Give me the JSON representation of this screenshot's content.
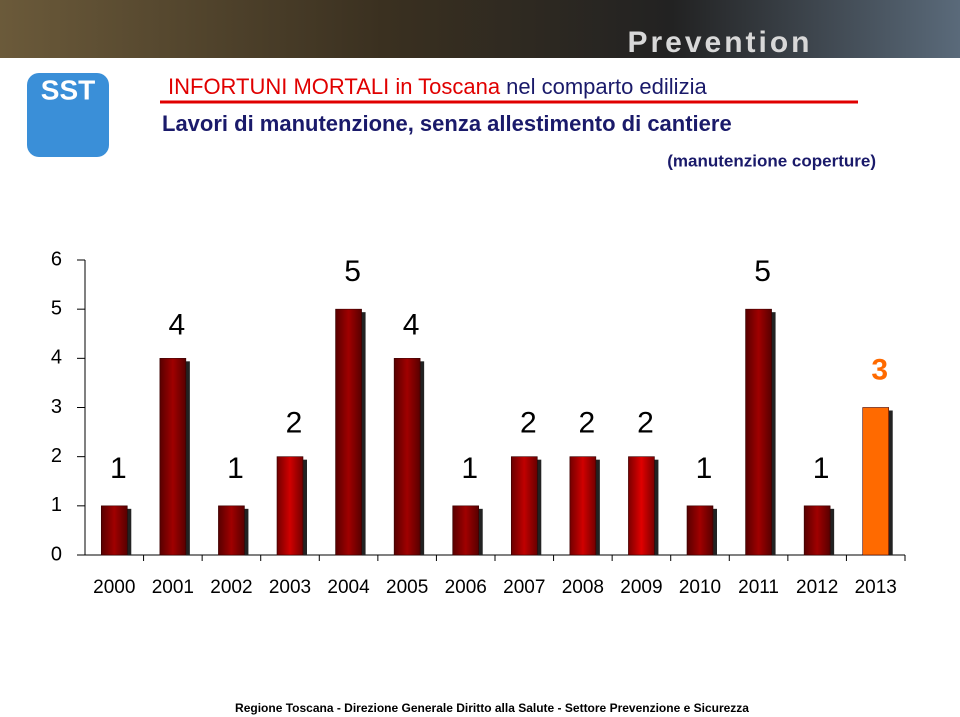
{
  "header": {
    "banner_text": "Prevention",
    "logo": "SST"
  },
  "title_red": "INFORTUNI MORTALI in Toscana",
  "title_blue": "nel comparto edilizia",
  "subtitle": "Lavori di manutenzione, senza allestimento di cantiere",
  "note": "(manutenzione coperture)",
  "chart_data": {
    "type": "bar",
    "categories": [
      "2000",
      "2001",
      "2002",
      "2003",
      "2004",
      "2005",
      "2006",
      "2007",
      "2008",
      "2009",
      "2010",
      "2011",
      "2012",
      "2013"
    ],
    "values": [
      1,
      4,
      1,
      2,
      5,
      4,
      1,
      2,
      2,
      2,
      1,
      5,
      1,
      3
    ],
    "colors": [
      "#a00000",
      "#a00000",
      "#a00000",
      "#d00000",
      "#a00000",
      "#a00000",
      "#a00000",
      "#c00000",
      "#d00000",
      "#e00000",
      "#a00000",
      "#a00000",
      "#a00000",
      "#ff6a00"
    ],
    "label_colors": [
      "#000000",
      "#000000",
      "#000000",
      "#000000",
      "#000000",
      "#000000",
      "#000000",
      "#000000",
      "#000000",
      "#000000",
      "#000000",
      "#000000",
      "#000000",
      "#ff6a00"
    ],
    "ylim": [
      0,
      6
    ],
    "yticks": [
      0,
      1,
      2,
      3,
      4,
      5,
      6
    ]
  },
  "footer": "Regione Toscana - Direzione Generale Diritto alla Salute - Settore Prevenzione e Sicurezza"
}
